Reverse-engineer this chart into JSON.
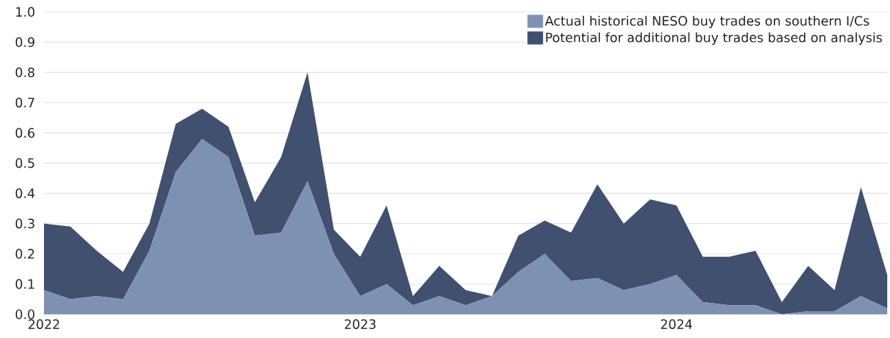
{
  "chart_data": {
    "type": "area",
    "stacked": true,
    "x": [
      "2022-01",
      "2022-02",
      "2022-03",
      "2022-04",
      "2022-05",
      "2022-06",
      "2022-07",
      "2022-08",
      "2022-09",
      "2022-10",
      "2022-11",
      "2022-12",
      "2023-01",
      "2023-02",
      "2023-03",
      "2023-04",
      "2023-05",
      "2023-06",
      "2023-07",
      "2023-08",
      "2023-09",
      "2023-10",
      "2023-11",
      "2023-12",
      "2024-01",
      "2024-02",
      "2024-03",
      "2024-04",
      "2024-05",
      "2024-06",
      "2024-07",
      "2024-08",
      "2024-09"
    ],
    "series": [
      {
        "name": "Actual historical NESO buy trades on southern I/Cs",
        "color": "#7f91b3",
        "values": [
          0.08,
          0.05,
          0.06,
          0.05,
          0.21,
          0.47,
          0.58,
          0.52,
          0.26,
          0.27,
          0.44,
          0.2,
          0.06,
          0.1,
          0.03,
          0.06,
          0.03,
          0.06,
          0.14,
          0.2,
          0.11,
          0.12,
          0.08,
          0.1,
          0.13,
          0.04,
          0.03,
          0.03,
          0.0,
          0.01,
          0.01,
          0.06,
          0.02
        ]
      },
      {
        "name": "Potential for additional buy trades based on analysis",
        "color": "#40506e",
        "values": [
          0.22,
          0.24,
          0.15,
          0.09,
          0.09,
          0.16,
          0.1,
          0.1,
          0.11,
          0.25,
          0.36,
          0.08,
          0.13,
          0.26,
          0.03,
          0.1,
          0.05,
          0.0,
          0.12,
          0.11,
          0.16,
          0.31,
          0.22,
          0.28,
          0.23,
          0.15,
          0.16,
          0.18,
          0.04,
          0.15,
          0.07,
          0.36,
          0.11
        ]
      }
    ],
    "xlim": [
      "2022-01",
      "2024-09"
    ],
    "xticks": [
      {
        "value": "2022-01",
        "label": "2022"
      },
      {
        "value": "2023-01",
        "label": "2023"
      },
      {
        "value": "2024-01",
        "label": "2024"
      }
    ],
    "ylim": [
      0,
      1
    ],
    "yticks": [
      {
        "value": 0,
        "label": "0.0"
      },
      {
        "value": 0.1,
        "label": "0.1"
      },
      {
        "value": 0.2,
        "label": "0.2"
      },
      {
        "value": 0.3,
        "label": "0.3"
      },
      {
        "value": 0.4,
        "label": "0.4"
      },
      {
        "value": 0.5,
        "label": "0.5"
      },
      {
        "value": 0.6,
        "label": "0.6"
      },
      {
        "value": 0.7,
        "label": "0.7"
      },
      {
        "value": 0.8,
        "label": "0.8"
      },
      {
        "value": 0.9,
        "label": "0.9"
      },
      {
        "value": 1.0,
        "label": "1.0"
      }
    ],
    "grid": "y",
    "legend": "top right"
  }
}
